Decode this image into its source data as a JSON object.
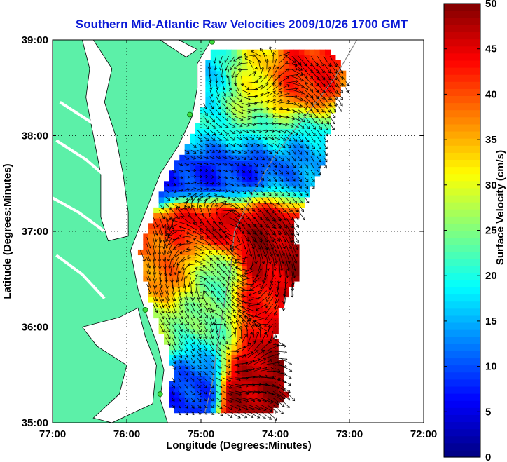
{
  "chart_data": {
    "type": "heatmap",
    "title": "Southern Mid-Atlantic Raw Velocities 2009/10/26 1700 GMT",
    "xlabel": "Longitude (Degrees:Minutes)",
    "ylabel": "Latitude (Degrees:Minutes)",
    "x_ticks": [
      {
        "value": -77,
        "label": "77:00"
      },
      {
        "value": -76,
        "label": "76:00"
      },
      {
        "value": -75,
        "label": "75:00"
      },
      {
        "value": -74,
        "label": "74:00"
      },
      {
        "value": -73,
        "label": "73:00"
      },
      {
        "value": -72,
        "label": "72:00"
      }
    ],
    "y_ticks": [
      {
        "value": 35,
        "label": "35:00"
      },
      {
        "value": 36,
        "label": "36:00"
      },
      {
        "value": 37,
        "label": "37:00"
      },
      {
        "value": 38,
        "label": "38:00"
      },
      {
        "value": 39,
        "label": "39:00"
      }
    ],
    "xlim": [
      -77,
      -72
    ],
    "ylim": [
      35,
      39
    ],
    "grid": "dotted",
    "colorbar": {
      "label": "Surface Velocity (cm/s)",
      "range": [
        0,
        50
      ],
      "ticks": [
        {
          "value": 0,
          "label": "0"
        },
        {
          "value": 5,
          "label": "5"
        },
        {
          "value": 10,
          "label": "10"
        },
        {
          "value": 15,
          "label": "15"
        },
        {
          "value": 20,
          "label": "20"
        },
        {
          "value": 25,
          "label": "25"
        },
        {
          "value": 30,
          "label": "30"
        },
        {
          "value": 35,
          "label": "35"
        },
        {
          "value": 40,
          "label": "40"
        },
        {
          "value": 45,
          "label": "45"
        },
        {
          "value": 50,
          "label": "50"
        }
      ],
      "colormap": "jet"
    },
    "speed_regions": [
      {
        "lon": -74.3,
        "lat": 38.5,
        "speed": 30,
        "sx": 0.7,
        "sy": 0.35
      },
      {
        "lon": -73.7,
        "lat": 38.6,
        "speed": 48,
        "sx": 0.35,
        "sy": 0.25
      },
      {
        "lon": -75.0,
        "lat": 38.55,
        "speed": 8,
        "sx": 0.35,
        "sy": 0.3
      },
      {
        "lon": -74.6,
        "lat": 37.7,
        "speed": 8,
        "sx": 0.7,
        "sy": 0.3
      },
      {
        "lon": -73.6,
        "lat": 37.7,
        "speed": 14,
        "sx": 0.3,
        "sy": 0.3
      },
      {
        "lon": -74.4,
        "lat": 38.05,
        "speed": 22,
        "sx": 0.8,
        "sy": 0.2
      },
      {
        "lon": -74.85,
        "lat": 37.05,
        "speed": 46,
        "sx": 0.4,
        "sy": 0.2
      },
      {
        "lon": -74.1,
        "lat": 36.9,
        "speed": 48,
        "sx": 0.5,
        "sy": 0.35
      },
      {
        "lon": -75.25,
        "lat": 36.65,
        "speed": 38,
        "sx": 0.25,
        "sy": 0.3
      },
      {
        "lon": -74.8,
        "lat": 36.5,
        "speed": 20,
        "sx": 0.3,
        "sy": 0.3
      },
      {
        "lon": -74.2,
        "lat": 36.3,
        "speed": 44,
        "sx": 0.35,
        "sy": 0.25
      },
      {
        "lon": -75.1,
        "lat": 36.05,
        "speed": 26,
        "sx": 0.3,
        "sy": 0.25
      },
      {
        "lon": -75.0,
        "lat": 35.6,
        "speed": 8,
        "sx": 0.2,
        "sy": 0.3
      },
      {
        "lon": -74.3,
        "lat": 35.55,
        "speed": 48,
        "sx": 0.3,
        "sy": 0.35
      },
      {
        "lon": -74.8,
        "lat": 35.9,
        "speed": 24,
        "sx": 0.3,
        "sy": 0.3
      }
    ],
    "flow_vortices": [
      {
        "lon": -74.5,
        "lat": 38.55,
        "strength": 1
      },
      {
        "lon": -74.7,
        "lat": 37.2,
        "strength": -1
      },
      {
        "lon": -75.0,
        "lat": 36.5,
        "strength": 1
      },
      {
        "lon": -74.3,
        "lat": 36.7,
        "strength": -1
      },
      {
        "lon": -74.7,
        "lat": 35.8,
        "strength": 1
      }
    ],
    "hf_radar_stations": [
      {
        "lon": -74.85,
        "lat": 38.98
      },
      {
        "lon": -75.15,
        "lat": 38.22
      },
      {
        "lon": -75.75,
        "lat": 36.18
      },
      {
        "lon": -75.55,
        "lat": 35.3
      }
    ]
  }
}
